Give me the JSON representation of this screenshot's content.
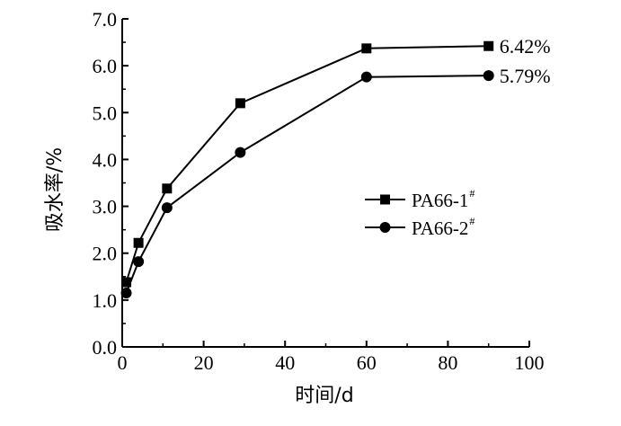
{
  "chart_data": {
    "type": "line",
    "title": "",
    "xlabel": "时间/d",
    "ylabel": "吸水率/%",
    "xlim": [
      0,
      100
    ],
    "ylim": [
      0,
      7
    ],
    "x_ticks": [
      "0",
      "20",
      "40",
      "60",
      "80",
      "100"
    ],
    "y_ticks": [
      "0.0",
      "1.0",
      "2.0",
      "3.0",
      "4.0",
      "5.0",
      "6.0",
      "7.0"
    ],
    "x_tick_values": [
      0,
      20,
      40,
      60,
      80,
      100
    ],
    "y_tick_values": [
      0,
      1,
      2,
      3,
      4,
      5,
      6,
      7
    ],
    "grid": false,
    "legend_position": "right-middle",
    "series": [
      {
        "name": "PA66-1",
        "name_sup": "#",
        "marker": "square",
        "x": [
          1,
          4,
          11,
          29,
          60,
          90
        ],
        "y": [
          1.38,
          2.22,
          3.38,
          5.2,
          6.37,
          6.42
        ],
        "end_label": "6.42%"
      },
      {
        "name": "PA66-2",
        "name_sup": "#",
        "marker": "circle",
        "x": [
          1,
          4,
          11,
          29,
          60,
          90
        ],
        "y": [
          1.15,
          1.82,
          2.97,
          4.15,
          5.76,
          5.79
        ],
        "end_label": "5.79%"
      }
    ]
  }
}
